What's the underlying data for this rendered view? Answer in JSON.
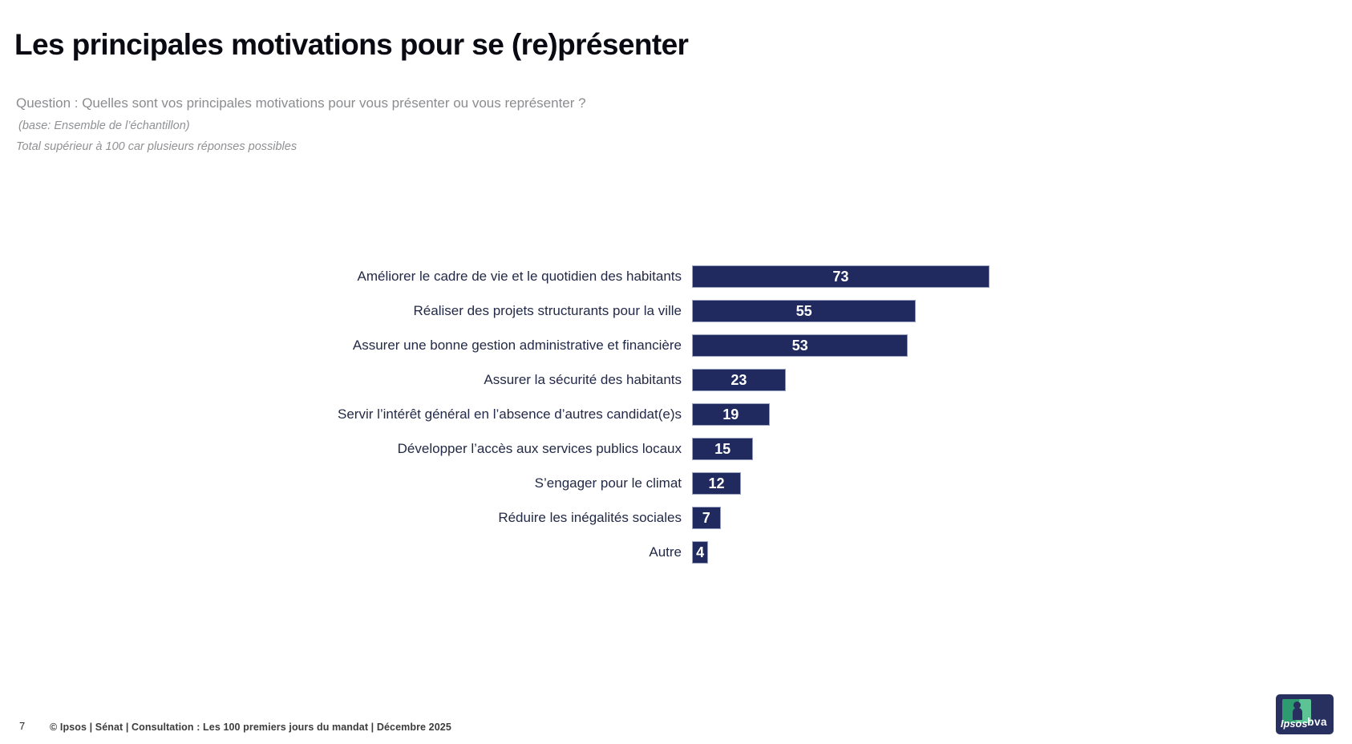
{
  "slide": {
    "title": "Les principales motivations pour se (re)présenter",
    "question": "Question : Quelles sont vos principales motivations pour vous présenter ou vous représenter ?",
    "base_note": "(base: Ensemble de l’échantillon)",
    "total_note": "Total supérieur à 100 car plusieurs réponses possibles"
  },
  "chart_data": {
    "type": "bar",
    "orientation": "horizontal",
    "categories": [
      "Améliorer le cadre de vie et le quotidien des habitants",
      "Réaliser des projets structurants pour la ville",
      "Assurer une bonne gestion administrative et financière",
      "Assurer la sécurité des habitants",
      "Servir l’intérêt général en l’absence d’autres candidat(e)s",
      "Développer l’accès aux services publics locaux",
      "S’engager pour le climat",
      "Réduire les inégalités sociales",
      "Autre"
    ],
    "values": [
      73,
      55,
      53,
      23,
      19,
      15,
      12,
      7,
      4
    ],
    "value_labels": [
      "73",
      "55",
      "53",
      "23",
      "19",
      "15",
      "12",
      "7",
      "4"
    ],
    "xlim": [
      0,
      80
    ],
    "grid": false,
    "legend": false,
    "value_labels_position": "inside-center",
    "bar_color": "#202A5E",
    "bar_border_color": "#9AA4C2",
    "value_label_color": "#FFFFFF",
    "category_label_color": "#232A47"
  },
  "footer": {
    "page_number": "7",
    "copyright": "© Ipsos | Sénat | Consultation : Les 100 premiers jours du mandat | Décembre 2025"
  },
  "logo": {
    "ipsos_label": "Ipsos",
    "bva_label": "bva",
    "navy": "#27305F",
    "green_dark": "#2D9A70",
    "green_light": "#5CC395"
  }
}
